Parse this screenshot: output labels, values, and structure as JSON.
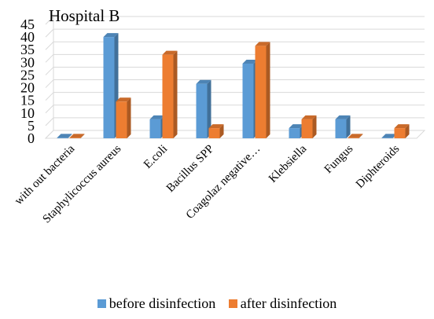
{
  "chart_data": {
    "type": "bar",
    "title": "Hospital B",
    "categories": [
      "with out bacteria",
      "Staphylicoccus aureus",
      "E.coli",
      "Bacillus SPP",
      "Coagolaz negative…",
      "Klebsiella",
      "Fungus",
      "Diphteroids"
    ],
    "series": [
      {
        "name": "before disinfection",
        "color": "#5B9BD5",
        "values": [
          0,
          40,
          7.5,
          21.5,
          29.5,
          4,
          7.5,
          0
        ]
      },
      {
        "name": "after disinfection",
        "color": "#ED7D31",
        "values": [
          0,
          14.5,
          33,
          4,
          36.5,
          7.5,
          0,
          4
        ]
      }
    ],
    "ylim": [
      0,
      45
    ],
    "yticks": [
      0,
      5,
      10,
      15,
      20,
      25,
      30,
      35,
      40,
      45
    ],
    "grid": true,
    "legend": "bottom"
  }
}
